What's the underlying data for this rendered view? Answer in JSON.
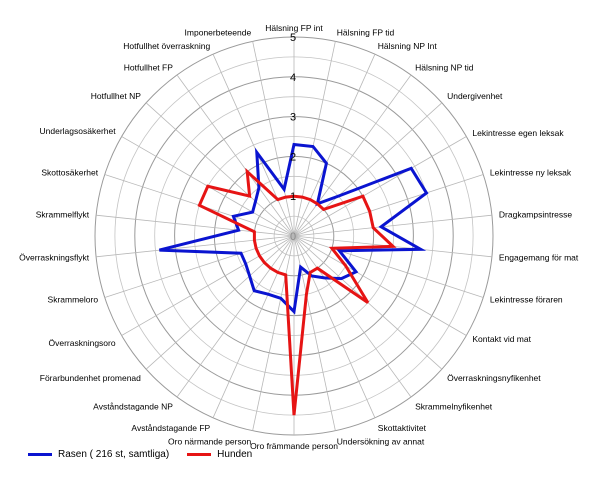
{
  "chart_data": {
    "type": "radar",
    "title": "",
    "rlim": [
      0,
      5
    ],
    "ticks": [
      "0",
      "1",
      "2",
      "3",
      "4",
      "5"
    ],
    "grid": true,
    "legend_position": "bottom-left",
    "categories": [
      "Hälsning FP int",
      "Hälsning FP tid",
      "Hälsning NP Int",
      "Hälsning NP tid",
      "Undergivenhet",
      "Lekintresse egen leksak",
      "Lekintresse ny leksak",
      "Dragkampsintresse",
      "Engagemang för mat",
      "Lekintresse föraren",
      "Kontakt vid mat",
      "Överraskningsnyfikenhet",
      "Skrammelnyfikenhet",
      "Skottaktivitet",
      "Undersökning av annat",
      "Oro främmande person",
      "Oro närmande person",
      "Avståndstagande FP",
      "Avståndstagande NP",
      "Förarbundenhet promenad",
      "Överraskningsoro",
      "Skrammeloro",
      "Överraskningsflykt",
      "Skrammelflykt",
      "Skottosäkerhet",
      "Underlagsosäkerhet",
      "Hotfullhet NP",
      "Hotfullhet FP",
      "Hotfullhet överraskning",
      "Imponerbeteende"
    ],
    "series": [
      {
        "name": "Rasen ( 216 st, samtliga)",
        "color": "#0a14d0",
        "values": [
          2.3,
          2.3,
          2.0,
          1.0,
          1.5,
          3.4,
          3.5,
          2.2,
          3.2,
          1.2,
          1.8,
          1.6,
          1.3,
          1.1,
          0.8,
          1.9,
          1.6,
          1.6,
          1.7,
          1.5,
          1.4,
          1.4,
          3.4,
          1.4,
          1.6,
          1.2,
          1.3,
          1.5,
          2.3,
          1.2
        ]
      },
      {
        "name": "Hunden",
        "color": "#e61414",
        "values": [
          1.0,
          1.0,
          1.0,
          1.0,
          1.0,
          2.0,
          2.0,
          2.0,
          2.5,
          1.0,
          1.5,
          2.5,
          1.0,
          1.0,
          1.5,
          4.5,
          1.0,
          1.0,
          1.0,
          1.0,
          1.0,
          1.0,
          1.0,
          1.0,
          2.5,
          2.5,
          1.5,
          2.0,
          1.0,
          1.0
        ]
      }
    ]
  }
}
